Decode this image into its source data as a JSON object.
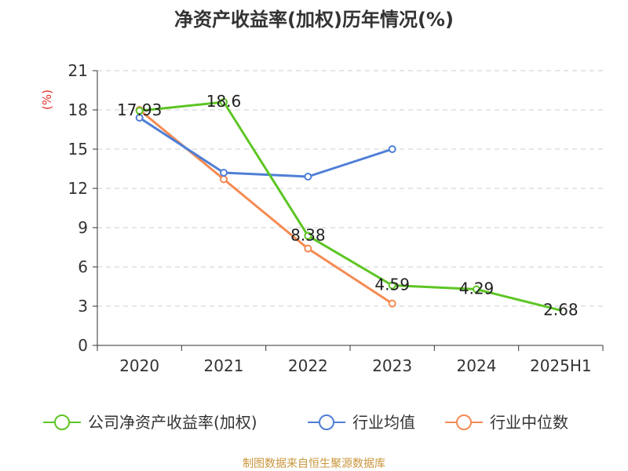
{
  "chart_data": {
    "type": "line",
    "title": "净资产收益率(加权)历年情况(%)",
    "ylabel": "(%)",
    "categories": [
      "2020",
      "2021",
      "2022",
      "2023",
      "2024",
      "2025H1"
    ],
    "y_ticks": [
      "0",
      "3",
      "6",
      "9",
      "12",
      "15",
      "18",
      "21"
    ],
    "ylim": [
      0,
      21
    ],
    "grid": true,
    "legend_position": "bottom",
    "series": [
      {
        "name": "公司净资产收益率(加权)",
        "color": "#5dc524",
        "values": [
          17.93,
          18.6,
          8.38,
          4.59,
          4.29,
          2.68
        ],
        "labels": [
          "17.93",
          "18.6",
          "8.38",
          "4.59",
          "4.29",
          "2.68"
        ]
      },
      {
        "name": "行业均值",
        "color": "#4f7fd6",
        "values": [
          17.4,
          13.2,
          12.9,
          15.0,
          null,
          null
        ]
      },
      {
        "name": "行业中位数",
        "color": "#f58b53",
        "values": [
          18.0,
          12.7,
          7.4,
          3.2,
          null,
          null
        ]
      }
    ]
  },
  "source": "制图数据来自恒生聚源数据库",
  "colors": {
    "axis": "#333333",
    "grid": "#cccccc",
    "ylabel": "#e0302a",
    "source": "#c8963c"
  }
}
